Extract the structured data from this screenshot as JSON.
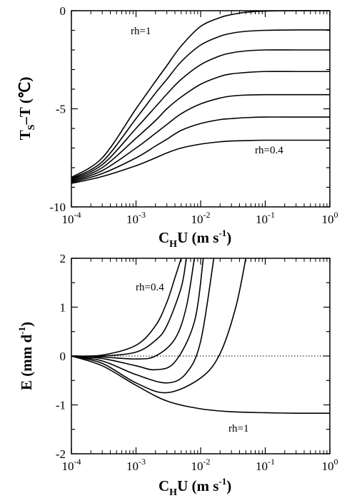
{
  "chart_data": [
    {
      "type": "line",
      "title": "",
      "x_scale": "log",
      "xlim": [
        0.0001,
        1
      ],
      "ylim": [
        -10,
        0
      ],
      "x_ticks": [
        {
          "base": "10",
          "exp": "-4"
        },
        {
          "base": "10",
          "exp": "-3"
        },
        {
          "base": "10",
          "exp": "-2"
        },
        {
          "base": "10",
          "exp": "-1"
        },
        {
          "base": "10",
          "exp": "0"
        }
      ],
      "y_ticks": [
        "0",
        "-5",
        "-10"
      ],
      "y_tick_values": [
        0,
        -5,
        -10
      ],
      "xlabel": {
        "main": "C",
        "sub": "H",
        "rest": "U  (m  s",
        "sup": "-1",
        "close": ")"
      },
      "ylabel": {
        "main": "T",
        "sub": "S",
        "rest": "–T  (℃)"
      },
      "annotations": [
        "rh=1",
        "rh=0.4"
      ],
      "series": [
        {
          "x": [
            0.0001,
            0.0003,
            0.001,
            0.002,
            0.003,
            0.005,
            0.01,
            0.02,
            0.03,
            0.05,
            0.1,
            0.3,
            1
          ],
          "values": [
            -8.5,
            -7.5,
            -5.0,
            -3.6,
            -2.8,
            -1.8,
            -0.8,
            -0.35,
            -0.2,
            -0.08,
            -0.02,
            0,
            0
          ]
        },
        {
          "x": [
            0.0001,
            0.0003,
            0.001,
            0.002,
            0.003,
            0.005,
            0.01,
            0.02,
            0.03,
            0.05,
            0.1,
            0.3,
            1
          ],
          "values": [
            -8.55,
            -7.7,
            -5.5,
            -4.2,
            -3.5,
            -2.6,
            -1.75,
            -1.3,
            -1.15,
            -1.05,
            -1.0,
            -0.98,
            -0.98
          ]
        },
        {
          "x": [
            0.0001,
            0.0003,
            0.001,
            0.002,
            0.003,
            0.005,
            0.01,
            0.02,
            0.03,
            0.05,
            0.1,
            0.3,
            1
          ],
          "values": [
            -8.6,
            -7.85,
            -6.0,
            -4.9,
            -4.25,
            -3.5,
            -2.75,
            -2.3,
            -2.15,
            -2.05,
            -2.0,
            -2.0,
            -2.0
          ]
        },
        {
          "x": [
            0.0001,
            0.0003,
            0.001,
            0.002,
            0.003,
            0.005,
            0.01,
            0.02,
            0.03,
            0.05,
            0.1,
            0.3,
            1
          ],
          "values": [
            -8.65,
            -8.0,
            -6.5,
            -5.6,
            -5.0,
            -4.4,
            -3.75,
            -3.35,
            -3.22,
            -3.15,
            -3.1,
            -3.1,
            -3.1
          ]
        },
        {
          "x": [
            0.0001,
            0.0003,
            0.001,
            0.002,
            0.003,
            0.005,
            0.01,
            0.02,
            0.03,
            0.05,
            0.1,
            0.3,
            1
          ],
          "values": [
            -8.7,
            -8.15,
            -7.0,
            -6.25,
            -5.8,
            -5.25,
            -4.75,
            -4.45,
            -4.35,
            -4.3,
            -4.28,
            -4.28,
            -4.28
          ]
        },
        {
          "x": [
            0.0001,
            0.0003,
            0.001,
            0.002,
            0.003,
            0.005,
            0.01,
            0.02,
            0.03,
            0.05,
            0.1,
            0.3,
            1
          ],
          "values": [
            -8.75,
            -8.3,
            -7.5,
            -6.9,
            -6.55,
            -6.1,
            -5.75,
            -5.55,
            -5.5,
            -5.45,
            -5.42,
            -5.42,
            -5.42
          ]
        },
        {
          "x": [
            0.0001,
            0.0003,
            0.001,
            0.002,
            0.003,
            0.005,
            0.01,
            0.02,
            0.03,
            0.05,
            0.1,
            0.3,
            1
          ],
          "values": [
            -8.8,
            -8.45,
            -7.9,
            -7.5,
            -7.25,
            -7.0,
            -6.8,
            -6.68,
            -6.64,
            -6.62,
            -6.6,
            -6.6,
            -6.6
          ]
        }
      ]
    },
    {
      "type": "line",
      "title": "",
      "x_scale": "log",
      "xlim": [
        0.0001,
        1
      ],
      "ylim": [
        -2,
        2
      ],
      "x_ticks": [
        {
          "base": "10",
          "exp": "-4"
        },
        {
          "base": "10",
          "exp": "-3"
        },
        {
          "base": "10",
          "exp": "-2"
        },
        {
          "base": "10",
          "exp": "-1"
        },
        {
          "base": "10",
          "exp": "0"
        }
      ],
      "y_ticks": [
        "2",
        "1",
        "0",
        "-1",
        "-2"
      ],
      "y_tick_values": [
        2,
        1,
        0,
        -1,
        -2
      ],
      "xlabel": {
        "main": "C",
        "sub": "H",
        "rest": "U  (m  s",
        "sup": "-1",
        "close": ")"
      },
      "ylabel": {
        "main": "E  (mm  d",
        "sup": "-1",
        "close": ")"
      },
      "reference_line": {
        "y": 0,
        "style": "dotted"
      },
      "annotations": [
        "rh=0.4",
        "rh=1"
      ],
      "series": [
        {
          "x": [
            0.0001,
            0.0003,
            0.001,
            0.002,
            0.003,
            0.004,
            0.005
          ],
          "values": [
            0,
            0.02,
            0.22,
            0.62,
            1.1,
            1.6,
            2.0
          ]
        },
        {
          "x": [
            0.0001,
            0.0003,
            0.001,
            0.002,
            0.003,
            0.005,
            0.006
          ],
          "values": [
            0,
            0.0,
            0.08,
            0.32,
            0.62,
            1.4,
            2.0
          ]
        },
        {
          "x": [
            0.0001,
            0.0003,
            0.001,
            0.002,
            0.004,
            0.006,
            0.008
          ],
          "values": [
            0,
            -0.02,
            -0.06,
            0.0,
            0.35,
            1.0,
            2.0
          ]
        },
        {
          "x": [
            0.0001,
            0.0003,
            0.001,
            0.002,
            0.004,
            0.008,
            0.011
          ],
          "values": [
            0,
            -0.05,
            -0.2,
            -0.28,
            -0.12,
            0.7,
            2.0
          ]
        },
        {
          "x": [
            0.0001,
            0.0003,
            0.001,
            0.003,
            0.006,
            0.01,
            0.016
          ],
          "values": [
            0,
            -0.1,
            -0.38,
            -0.55,
            -0.35,
            0.3,
            2.0
          ]
        },
        {
          "x": [
            0.0001,
            0.0003,
            0.001,
            0.003,
            0.01,
            0.02,
            0.035,
            0.05
          ],
          "values": [
            0,
            -0.15,
            -0.55,
            -0.75,
            -0.45,
            0.05,
            1.0,
            2.0
          ]
        },
        {
          "x": [
            0.0001,
            0.0003,
            0.001,
            0.003,
            0.01,
            0.03,
            0.1,
            0.3,
            1
          ],
          "values": [
            0,
            -0.2,
            -0.6,
            -0.92,
            -1.08,
            -1.14,
            -1.16,
            -1.17,
            -1.17
          ]
        }
      ]
    }
  ]
}
